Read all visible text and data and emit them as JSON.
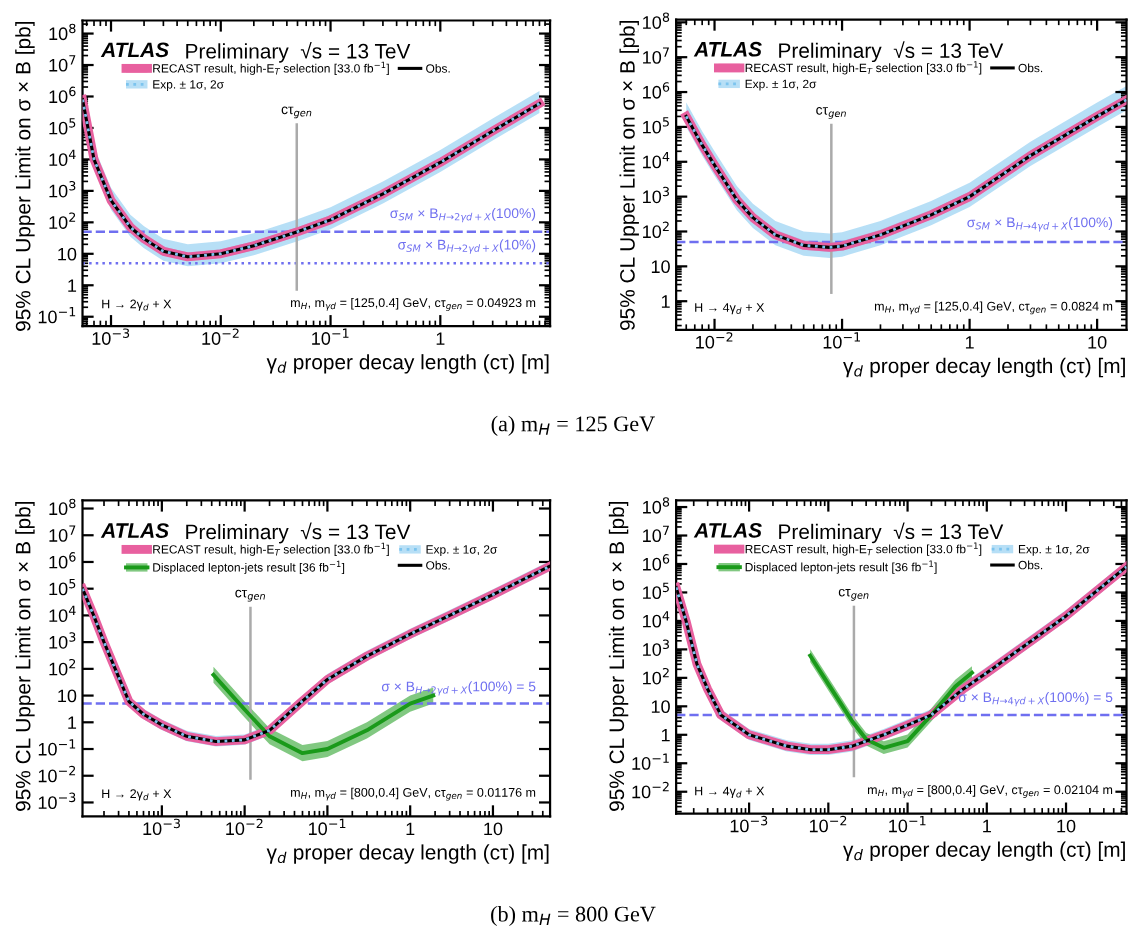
{
  "chart_data": [
    {
      "type": "line",
      "xlabel": "γ$_{d}$ proper decay length (cτ) [m]",
      "ylabel": "95% CL Upper Limit on σ × B [pb]",
      "subtitle": "(a) m$_{H}$ = 125 GeV",
      "log": "xy",
      "legend": "top left",
      "xlim": [
        0.00055,
        10
      ],
      "ylim": [
        0.05,
        260000000
      ],
      "xticks": [
        {
          "value": 0.001,
          "label": "10$^{−3}$"
        },
        {
          "value": 0.01,
          "label": "10$^{−2}$"
        },
        {
          "value": 0.1,
          "label": "10$^{−1}$"
        },
        1
      ],
      "yticks": [
        {
          "value": 0.1,
          "label": "10$^{−1}$"
        },
        1,
        10,
        {
          "value": 100,
          "label": "10$^{2}$"
        },
        {
          "value": 1000,
          "label": "10$^{3}$"
        },
        {
          "value": 10000,
          "label": "10$^{4}$"
        },
        {
          "value": 100000,
          "label": "10$^{5}$"
        },
        {
          "value": 1000000,
          "label": "10$^{6}$"
        },
        {
          "value": 10000000,
          "label": "10$^{7}$"
        },
        {
          "value": 100000000,
          "label": "10$^{8}$"
        }
      ],
      "series": [
        {
          "name": "RECAST result, high-E$_{T}$ selection [33.0 fb$^{−1}$]",
          "color": "#e8609f",
          "x": [
            0.00055,
            0.0007,
            0.001,
            0.0015,
            0.002,
            0.003,
            0.005,
            0.01,
            0.02,
            0.05,
            0.1,
            0.3,
            1,
            3,
            8
          ],
          "values": [
            800000,
            10000,
            500,
            70,
            30,
            12,
            8,
            10,
            18,
            50,
            120,
            800,
            8000,
            80000,
            600000
          ],
          "lower": [
            600000,
            7500,
            375,
            52,
            22,
            9,
            6,
            7.5,
            13,
            37,
            90,
            600,
            6000,
            60000,
            450000
          ],
          "upper": [
            1100000,
            14000,
            700,
            98,
            42,
            17,
            11,
            14,
            25,
            70,
            170,
            1100,
            11000,
            110000,
            840000
          ]
        },
        {
          "name": "Exp. ± 1σ, 2σ",
          "color": "#7cc4ee",
          "line_style": "dotted",
          "x": [
            0.00055,
            0.0007,
            0.001,
            0.0015,
            0.002,
            0.003,
            0.005,
            0.01,
            0.02,
            0.05,
            0.1,
            0.3,
            1,
            3,
            8
          ],
          "values": [
            800000,
            10000,
            500,
            70,
            30,
            12,
            8,
            10,
            18,
            50,
            120,
            800,
            8000,
            80000,
            600000
          ],
          "lower": [
            400000,
            5000,
            250,
            35,
            15,
            6,
            4,
            5,
            9,
            25,
            60,
            400,
            4000,
            40000,
            300000
          ],
          "upper": [
            2000000,
            25000,
            1250,
            175,
            75,
            30,
            20,
            25,
            45,
            125,
            300,
            2000,
            20000,
            200000,
            1500000
          ]
        },
        {
          "name": "Obs.",
          "color": "#000000",
          "x": [
            0.00055,
            0.0007,
            0.001,
            0.0015,
            0.002,
            0.003,
            0.005,
            0.01,
            0.02,
            0.05,
            0.1,
            0.3,
            1,
            3,
            8
          ],
          "values": [
            800000,
            10000,
            500,
            70,
            30,
            12,
            8,
            10,
            18,
            50,
            120,
            800,
            8000,
            80000,
            600000
          ]
        }
      ],
      "ref_lines": [
        {
          "axis": "y",
          "value": 50,
          "label": "σ$_{SM}$ × B$_{H→2γd+X}$(100%)",
          "color": "#6f6ff0",
          "line_style": "dashed"
        },
        {
          "axis": "y",
          "value": 5,
          "label": "σ$_{SM}$ × B$_{H→2γd+X}$(10%)",
          "color": "#6f6ff0",
          "line_style": "dotted"
        },
        {
          "axis": "x",
          "value": 0.04923,
          "label": "cτ$_{gen}$",
          "color": "#aaaaaa",
          "line_style": "solid"
        }
      ],
      "annotations": [
        "ATLAS",
        "Preliminary  √s = 13 TeV",
        "H → 2γ$_{d}$ + X",
        "m$_{H}$, m$_{γd}$ = [125,0.4] GeV, cτ$_{gen}$ = 0.04923 m"
      ]
    },
    {
      "type": "line",
      "xlabel": "γ$_{d}$ proper decay length (cτ) [m]",
      "ylabel": "95% CL Upper Limit on σ × B [pb]",
      "log": "xy",
      "legend": "top left",
      "xlim": [
        0.005,
        17
      ],
      "ylim": [
        0.15,
        120000000
      ],
      "xticks": [
        {
          "value": 0.01,
          "label": "10$^{−2}$"
        },
        {
          "value": 0.1,
          "label": "10$^{−1}$"
        },
        1,
        10
      ],
      "yticks": [
        1,
        10,
        {
          "value": 100,
          "label": "10$^{2}$"
        },
        {
          "value": 1000,
          "label": "10$^{3}$"
        },
        {
          "value": 10000,
          "label": "10$^{4}$"
        },
        {
          "value": 100000,
          "label": "10$^{5}$"
        },
        {
          "value": 1000000,
          "label": "10$^{6}$"
        },
        {
          "value": 10000000,
          "label": "10$^{7}$"
        },
        {
          "value": 100000000,
          "label": "10$^{8}$"
        }
      ],
      "series": [
        {
          "name": "RECAST result, high-E$_{T}$ selection [33.0 fb$^{−1}$]",
          "color": "#e8609f",
          "x": [
            0.006,
            0.008,
            0.01,
            0.015,
            0.02,
            0.03,
            0.05,
            0.08,
            0.1,
            0.2,
            0.5,
            1,
            3,
            10,
            17
          ],
          "values": [
            200000,
            30000,
            8000,
            800,
            250,
            80,
            40,
            35,
            38,
            80,
            300,
            1000,
            15000,
            200000,
            600000
          ],
          "lower": [
            150000,
            22500,
            6000,
            600,
            188,
            60,
            30,
            26,
            28,
            60,
            225,
            750,
            11250,
            150000,
            450000
          ],
          "upper": [
            280000,
            42000,
            11200,
            1120,
            350,
            112,
            56,
            49,
            53,
            112,
            420,
            1400,
            21000,
            280000,
            840000
          ]
        },
        {
          "name": "Exp. ± 1σ, 2σ",
          "color": "#7cc4ee",
          "line_style": "dotted",
          "x": [
            0.006,
            0.008,
            0.01,
            0.015,
            0.02,
            0.03,
            0.05,
            0.08,
            0.1,
            0.2,
            0.5,
            1,
            3,
            10,
            17
          ],
          "values": [
            200000,
            30000,
            8000,
            800,
            250,
            80,
            40,
            35,
            38,
            80,
            300,
            1000,
            15000,
            200000,
            600000
          ],
          "lower": [
            100000,
            15000,
            4000,
            400,
            125,
            40,
            20,
            17.5,
            19,
            40,
            150,
            500,
            7500,
            100000,
            300000
          ],
          "upper": [
            500000,
            75000,
            20000,
            2000,
            625,
            200,
            100,
            87.5,
            95,
            200,
            750,
            2500,
            37500,
            500000,
            1500000
          ]
        },
        {
          "name": "Obs.",
          "color": "#000000",
          "x": [
            0.006,
            0.008,
            0.01,
            0.015,
            0.02,
            0.03,
            0.05,
            0.08,
            0.1,
            0.2,
            0.5,
            1,
            3,
            10,
            17
          ],
          "values": [
            200000,
            30000,
            8000,
            800,
            250,
            80,
            40,
            35,
            38,
            80,
            300,
            1000,
            15000,
            200000,
            600000
          ]
        }
      ],
      "ref_lines": [
        {
          "axis": "y",
          "value": 50,
          "label": "σ$_{SM}$ × B$_{H→4γd+X}$(100%)",
          "color": "#6f6ff0",
          "line_style": "dashed"
        },
        {
          "axis": "x",
          "value": 0.0824,
          "label": "cτ$_{gen}$",
          "color": "#aaaaaa",
          "line_style": "solid"
        }
      ],
      "annotations": [
        "ATLAS",
        "Preliminary  √s = 13 TeV",
        "H → 4γ$_{d}$ + X",
        "m$_{H}$, m$_{γd}$ = [125,0.4] GeV, cτ$_{gen}$ = 0.0824 m"
      ]
    },
    {
      "type": "line",
      "xlabel": "γ$_{d}$ proper decay length (cτ) [m]",
      "ylabel": "95% CL Upper Limit on σ × B [pb]",
      "subtitle": "(b) m$_{H}$ = 800 GeV",
      "log": "xy",
      "legend": "top left",
      "xlim": [
        0.00011,
        49
      ],
      "ylim": [
        0.0003,
        200000000
      ],
      "xticks": [
        {
          "value": 0.001,
          "label": "10$^{−3}$"
        },
        {
          "value": 0.01,
          "label": "10$^{−2}$"
        },
        {
          "value": 0.1,
          "label": "10$^{−1}$"
        },
        1,
        10
      ],
      "yticks": [
        {
          "value": 0.001,
          "label": "10$^{−3}$"
        },
        {
          "value": 0.01,
          "label": "10$^{−2}$"
        },
        {
          "value": 0.1,
          "label": "10$^{−1}$"
        },
        1,
        10,
        {
          "value": 100,
          "label": "10$^{2}$"
        },
        {
          "value": 1000,
          "label": "10$^{3}$"
        },
        {
          "value": 10000,
          "label": "10$^{4}$"
        },
        {
          "value": 100000,
          "label": "10$^{5}$"
        },
        {
          "value": 1000000,
          "label": "10$^{6}$"
        },
        {
          "value": 10000000,
          "label": "10$^{7}$"
        },
        {
          "value": 100000000,
          "label": "10$^{8}$"
        }
      ],
      "series": [
        {
          "name": "RECAST result, high-E$_{T}$ selection [33.0 fb$^{−1}$]",
          "color": "#e8609f",
          "x": [
            0.00011,
            0.00015,
            0.0002,
            0.0003,
            0.0004,
            0.0006,
            0.001,
            0.002,
            0.0045,
            0.01,
            0.02,
            0.046,
            0.1,
            0.3,
            1,
            3,
            10,
            49
          ],
          "values": [
            100000,
            10000,
            1000,
            50,
            6,
            2,
            0.8,
            0.3,
            0.19,
            0.22,
            0.5,
            5,
            40,
            300,
            2000,
            10000,
            60000,
            700000
          ]
        },
        {
          "name": "Exp. ± 1σ, 2σ",
          "color": "#7cc4ee",
          "line_style": "dotted",
          "x": [
            0.00011,
            0.00015,
            0.0002,
            0.0003,
            0.0004,
            0.0006,
            0.001,
            0.002,
            0.0045,
            0.01,
            0.02,
            0.046,
            0.1,
            0.3,
            1,
            3,
            10,
            49
          ],
          "values": [
            100000,
            10000,
            1000,
            50,
            6,
            2,
            0.8,
            0.3,
            0.19,
            0.22,
            0.5,
            5,
            40,
            300,
            2000,
            10000,
            60000,
            700000
          ],
          "lower": [
            65000,
            6500,
            650,
            32.5,
            3.9,
            1.3,
            0.52,
            0.195,
            0.1235,
            0.143,
            0.325,
            3.25,
            26,
            195,
            1300,
            6500,
            39000,
            455000
          ],
          "upper": [
            160000,
            16000,
            1600,
            80,
            9.6,
            3.2,
            1.28,
            0.48,
            0.304,
            0.352,
            0.8,
            8,
            64,
            480,
            3200,
            16000,
            96000,
            1120000
          ]
        },
        {
          "name": "Obs.",
          "color": "#000000",
          "x": [
            0.00011,
            0.00015,
            0.0002,
            0.0003,
            0.0004,
            0.0006,
            0.001,
            0.002,
            0.0045,
            0.01,
            0.02,
            0.046,
            0.1,
            0.3,
            1,
            3,
            10,
            49
          ],
          "values": [
            100000,
            10000,
            1000,
            50,
            6,
            2,
            0.8,
            0.3,
            0.19,
            0.22,
            0.5,
            5,
            40,
            300,
            2000,
            10000,
            60000,
            700000
          ]
        },
        {
          "name": "Displaced lepton-jets result [36 fb$^{−1}$]",
          "color": "#1a9a1a",
          "x": [
            0.0042,
            0.01,
            0.02,
            0.05,
            0.1,
            0.3,
            1,
            1.9
          ],
          "values": [
            60,
            3,
            0.3,
            0.07,
            0.1,
            0.5,
            5,
            10
          ],
          "lower": [
            30,
            1.5,
            0.15,
            0.035,
            0.05,
            0.25,
            2.5,
            5
          ],
          "upper": [
            120,
            6,
            0.6,
            0.14,
            0.2,
            1,
            10,
            20
          ]
        }
      ],
      "ref_lines": [
        {
          "axis": "y",
          "value": 5,
          "label": "σ × B$_{H→2γd+X}$(100%) = 5",
          "color": "#6f6ff0",
          "line_style": "dashed"
        },
        {
          "axis": "x",
          "value": 0.01176,
          "label": "cτ$_{gen}$",
          "color": "#aaaaaa",
          "line_style": "solid"
        }
      ],
      "annotations": [
        "ATLAS",
        "Preliminary  √s = 13 TeV",
        "H → 2γ$_{d}$ + X",
        "m$_{H}$, m$_{γd}$ = [800,0.4] GeV, cτ$_{gen}$ = 0.01176 m"
      ]
    },
    {
      "type": "line",
      "xlabel": "γ$_{d}$ proper decay length (cτ) [m]",
      "ylabel": "95% CL Upper Limit on σ × B [pb]",
      "log": "xy",
      "legend": "top left",
      "xlim": [
        0.00012,
        58
      ],
      "ylim": [
        0.0017,
        170000000
      ],
      "xticks": [
        {
          "value": 0.001,
          "label": "10$^{−3}$"
        },
        {
          "value": 0.01,
          "label": "10$^{−2}$"
        },
        {
          "value": 0.1,
          "label": "10$^{−1}$"
        },
        1,
        10
      ],
      "yticks": [
        {
          "value": 0.01,
          "label": "10$^{−2}$"
        },
        {
          "value": 0.1,
          "label": "10$^{−1}$"
        },
        1,
        10,
        {
          "value": 100,
          "label": "10$^{2}$"
        },
        {
          "value": 1000,
          "label": "10$^{3}$"
        },
        {
          "value": 10000,
          "label": "10$^{4}$"
        },
        {
          "value": 100000,
          "label": "10$^{5}$"
        },
        {
          "value": 1000000,
          "label": "10$^{6}$"
        },
        {
          "value": 10000000,
          "label": "10$^{7}$"
        },
        {
          "value": 100000000,
          "label": "10$^{8}$"
        }
      ],
      "series": [
        {
          "name": "RECAST result, high-E$_{T}$ selection [33.0 fb$^{−1}$]",
          "color": "#e8609f",
          "x": [
            0.00012,
            0.00016,
            0.00022,
            0.0003,
            0.00044,
            0.001,
            0.003,
            0.006,
            0.01,
            0.02,
            0.05,
            0.1,
            0.2,
            0.5,
            1,
            10,
            58
          ],
          "values": [
            150000,
            10000,
            300,
            40,
            5,
            1,
            0.4,
            0.3,
            0.3,
            0.4,
            1,
            2.2,
            5,
            40,
            150,
            15000,
            800000
          ]
        },
        {
          "name": "Exp. ± 1σ, 2σ",
          "color": "#7cc4ee",
          "line_style": "dotted",
          "x": [
            0.00012,
            0.00016,
            0.00022,
            0.0003,
            0.00044,
            0.001,
            0.003,
            0.006,
            0.01,
            0.02,
            0.05,
            0.1,
            0.2,
            0.5,
            1,
            10,
            58
          ],
          "values": [
            150000,
            10000,
            300,
            40,
            5,
            1,
            0.4,
            0.3,
            0.3,
            0.4,
            1,
            2.2,
            5,
            40,
            150,
            15000,
            800000
          ],
          "lower": [
            97500,
            6500,
            195,
            26,
            3.25,
            0.65,
            0.26,
            0.195,
            0.195,
            0.26,
            0.65,
            1.43,
            3.25,
            26,
            97.5,
            9750,
            520000
          ],
          "upper": [
            240000,
            16000,
            480,
            64,
            8,
            1.6,
            0.64,
            0.48,
            0.48,
            0.64,
            1.6,
            3.52,
            8,
            64,
            240,
            24000,
            1280000
          ]
        },
        {
          "name": "Obs.",
          "color": "#000000",
          "x": [
            0.00012,
            0.00016,
            0.00022,
            0.0003,
            0.00044,
            0.001,
            0.003,
            0.006,
            0.01,
            0.02,
            0.05,
            0.1,
            0.2,
            0.5,
            1,
            10,
            58
          ],
          "values": [
            150000,
            10000,
            300,
            40,
            5,
            1,
            0.4,
            0.3,
            0.3,
            0.4,
            1,
            2.2,
            5,
            40,
            150,
            15000,
            800000
          ]
        },
        {
          "name": "Displaced lepton-jets result [36 fb$^{−1}$]",
          "color": "#1a9a1a",
          "x": [
            0.0059,
            0.01,
            0.02,
            0.03,
            0.05,
            0.1,
            0.2,
            0.4,
            0.65
          ],
          "values": [
            600,
            60,
            3,
            0.7,
            0.35,
            0.6,
            5,
            50,
            150
          ],
          "lower": [
            360,
            36,
            1.8,
            0.42,
            0.21,
            0.36,
            3,
            30,
            90
          ],
          "upper": [
            1020,
            102,
            5.1,
            1.19,
            0.595,
            1.02,
            8.5,
            85,
            255
          ]
        }
      ],
      "ref_lines": [
        {
          "axis": "y",
          "value": 5,
          "label": "σ × B$_{H→4γd+X}$(100%) = 5",
          "color": "#6f6ff0",
          "line_style": "dashed"
        },
        {
          "axis": "x",
          "value": 0.02104,
          "label": "cτ$_{gen}$",
          "color": "#aaaaaa",
          "line_style": "solid"
        }
      ],
      "annotations": [
        "ATLAS",
        "Preliminary  √s = 13 TeV",
        "H → 4γ$_{d}$ + X",
        "m$_{H}$, m$_{γd}$ = [800,0.4] GeV, cτ$_{gen}$ = 0.02104 m"
      ]
    }
  ]
}
